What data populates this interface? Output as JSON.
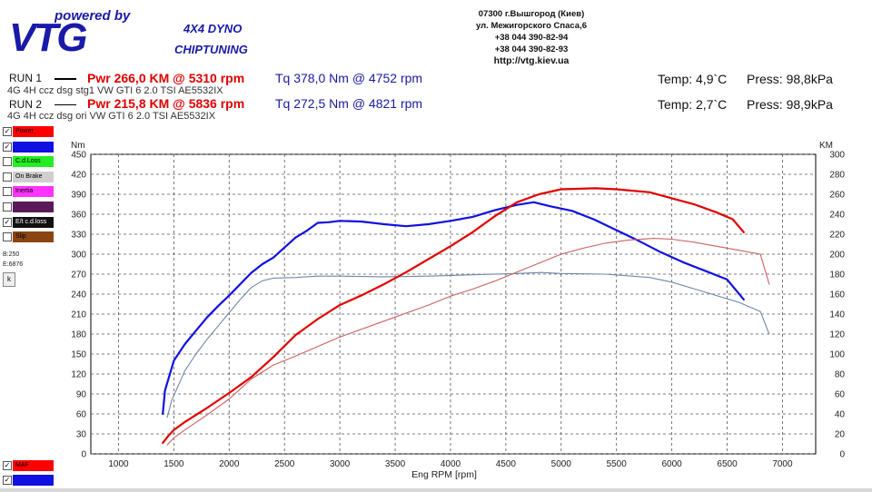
{
  "header": {
    "logo_tagline": "powered by",
    "logo_brand": "VTG",
    "logo_sub1": "4X4 DYNO",
    "logo_sub2": "CHIPTUNING",
    "contact": [
      "07300 г.Вышгород (Киев)",
      "ул. Межигорского Спаса,6",
      "+38 044 390-82-94",
      "+38 044 390-82-93",
      "http://vtg.kiev.ua"
    ]
  },
  "runs": [
    {
      "label": "RUN 1",
      "desc": "4G 4H   ccz dsg stg1 VW GTI 6 2.0 TSI AE5532IX",
      "pwr": "Pwr  266,0 KM @ 5310 rpm",
      "tq": "Tq 378,0 Nm @ 4752 rpm",
      "temp": "Temp: 4,9`C",
      "press": "Press: 98,8kPa"
    },
    {
      "label": "RUN 2",
      "desc": "4G 4H   ccz dsg ori  VW GTI 6 2.0 TSI AE5532IX",
      "pwr": "Pwr  215,8 KM @ 5836 rpm",
      "tq": "Tq 272,5 Nm @ 4821 rpm",
      "temp": "Temp: 2,7`C",
      "press": "Press: 98,9kPa"
    }
  ],
  "legend": [
    {
      "label": "Power",
      "checked": true,
      "color": "#ff0000",
      "text_color": "#000000"
    },
    {
      "label": "",
      "checked": true,
      "color": "#1010e0",
      "text_color": "#ffffff"
    },
    {
      "label": "C.d.Loss",
      "checked": false,
      "color": "#22ee22",
      "text_color": "#000000"
    },
    {
      "label": "On Brake",
      "checked": false,
      "color": "#cfcfcf",
      "text_color": "#000000"
    },
    {
      "label": "Inertia",
      "checked": false,
      "color": "#ff33ff",
      "text_color": "#000000"
    },
    {
      "label": "",
      "checked": false,
      "color": "#5a1a5a",
      "text_color": "#ffffff"
    },
    {
      "label": "E/t c.d.loss",
      "checked": true,
      "color": "#111111",
      "text_color": "#ffffff"
    },
    {
      "label": "Slip",
      "checked": false,
      "color": "#8b4513",
      "text_color": "#000000"
    }
  ],
  "side_values": {
    "b": "B:250",
    "e": "E:6876",
    "k_button": "k"
  },
  "bottom_legend": [
    {
      "label": "MAF",
      "checked": true,
      "color": "#ff0000",
      "text_color": "#000000"
    },
    {
      "label": "",
      "checked": true,
      "color": "#1010e0",
      "text_color": "#ffffff"
    }
  ],
  "chart_data": {
    "type": "line",
    "xlabel": "Eng RPM [rpm]",
    "ylabel_left": "Nm",
    "ylabel_right": "KM",
    "xlim": [
      750,
      7300
    ],
    "ylim_left": [
      0,
      450
    ],
    "ylim_right": [
      0,
      300
    ],
    "x_ticks": [
      1000,
      1500,
      2000,
      2500,
      3000,
      3500,
      4000,
      4500,
      5000,
      5500,
      6000,
      6500,
      7000
    ],
    "y_ticks_left": [
      0,
      30,
      60,
      90,
      120,
      150,
      180,
      210,
      240,
      270,
      300,
      330,
      360,
      390,
      420,
      450
    ],
    "y_ticks_right": [
      0,
      20,
      40,
      60,
      80,
      100,
      120,
      140,
      160,
      180,
      200,
      220,
      240,
      260,
      280,
      300
    ],
    "grid": true,
    "series": [
      {
        "axis": "left",
        "color": "#1010e0",
        "width": 2.2,
        "x": [
          1400,
          1420,
          1500,
          1600,
          1700,
          1800,
          1900,
          2000,
          2100,
          2200,
          2300,
          2400,
          2500,
          2600,
          2700,
          2800,
          2900,
          3000,
          3200,
          3400,
          3600,
          3800,
          4000,
          4200,
          4400,
          4600,
          4752,
          4900,
          5100,
          5300,
          5500,
          5700,
          5900,
          6100,
          6300,
          6500,
          6650
        ],
        "y": [
          60,
          95,
          140,
          165,
          185,
          205,
          222,
          238,
          255,
          272,
          285,
          295,
          310,
          325,
          335,
          347,
          348,
          350,
          349,
          345,
          342,
          345,
          350,
          356,
          366,
          374,
          378,
          372,
          365,
          352,
          336,
          320,
          303,
          288,
          275,
          262,
          232
        ]
      },
      {
        "axis": "left",
        "color": "#7088a8",
        "width": 1.1,
        "x": [
          1440,
          1480,
          1600,
          1700,
          1800,
          1900,
          2000,
          2100,
          2200,
          2300,
          2400,
          2600,
          2800,
          3000,
          3400,
          3800,
          4200,
          4600,
          4821,
          5000,
          5400,
          5800,
          6000,
          6200,
          6400,
          6600,
          6800,
          6880
        ],
        "y": [
          55,
          80,
          125,
          150,
          172,
          192,
          212,
          232,
          250,
          260,
          264,
          265,
          267,
          267,
          266,
          267,
          269,
          271,
          272.5,
          271,
          270,
          265,
          258,
          248,
          238,
          228,
          214,
          180
        ]
      },
      {
        "axis": "right",
        "color": "#e00000",
        "width": 2.2,
        "x": [
          1400,
          1450,
          1500,
          1600,
          1800,
          2000,
          2200,
          2400,
          2600,
          2800,
          3000,
          3200,
          3400,
          3600,
          3800,
          4000,
          4200,
          4400,
          4600,
          4800,
          5000,
          5310,
          5500,
          5800,
          6000,
          6200,
          6400,
          6550,
          6650
        ],
        "y": [
          11,
          18,
          24,
          32,
          46,
          61,
          77,
          97,
          119,
          135,
          149,
          159,
          170,
          182,
          195,
          208,
          222,
          238,
          252,
          260,
          265,
          266,
          265,
          262,
          256,
          250,
          242,
          235,
          222
        ]
      },
      {
        "axis": "right",
        "color": "#cc6060",
        "width": 1.1,
        "x": [
          1440,
          1500,
          1600,
          1800,
          2000,
          2200,
          2400,
          2600,
          3000,
          3400,
          3800,
          4000,
          4200,
          4400,
          4600,
          4800,
          5000,
          5200,
          5400,
          5600,
          5836,
          6000,
          6200,
          6400,
          6600,
          6800,
          6880
        ],
        "y": [
          9,
          16,
          24,
          39,
          55,
          75,
          89,
          98,
          117,
          133,
          149,
          158,
          165,
          173,
          182,
          191,
          200,
          206,
          211,
          214,
          215.8,
          215,
          212,
          208,
          204,
          200,
          170
        ]
      }
    ]
  }
}
